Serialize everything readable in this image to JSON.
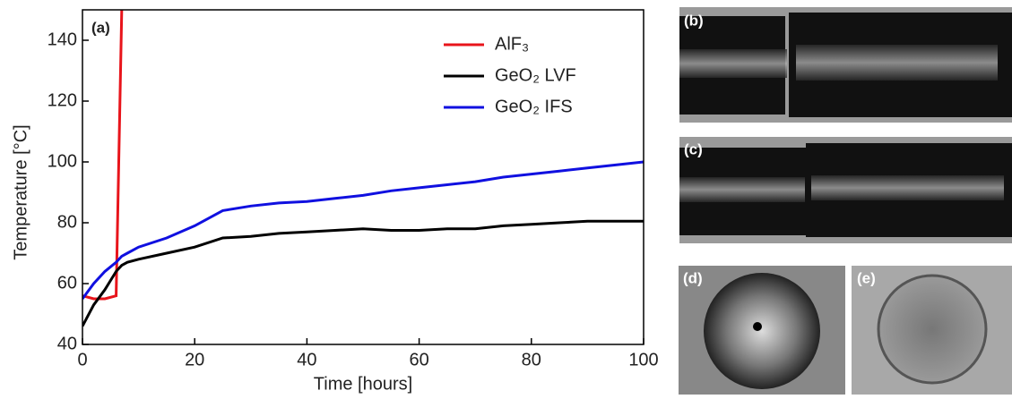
{
  "chart_data": {
    "type": "line",
    "panel_label": "(a)",
    "x_label": "Time [hours]",
    "y_label": "Temperature [°C]",
    "x": [
      0,
      2,
      4,
      6,
      7,
      8,
      10,
      15,
      20,
      25,
      30,
      35,
      40,
      45,
      50,
      55,
      60,
      65,
      70,
      75,
      80,
      85,
      90,
      95,
      100
    ],
    "series": [
      {
        "name": "AlF₃",
        "color": "#e8141b",
        "values": [
          56,
          55,
          55,
          56,
          150,
          null,
          null,
          null,
          null,
          null,
          null,
          null,
          null,
          null,
          null,
          null,
          null,
          null,
          null,
          null,
          null,
          null,
          null,
          null,
          null
        ]
      },
      {
        "name": "GeO₂ LVF",
        "color": "#000000",
        "values": [
          46,
          53,
          58,
          64,
          66,
          67,
          68,
          70,
          72,
          75,
          75.5,
          76.5,
          77,
          77.5,
          78,
          77.5,
          77.5,
          78,
          78,
          79,
          79.5,
          80,
          80.5,
          80.5,
          80.5
        ]
      },
      {
        "name": "GeO₂ IFS",
        "color": "#1010e0",
        "values": [
          55,
          60,
          64,
          67,
          69,
          70,
          72,
          75,
          79,
          84,
          85.5,
          86.5,
          87,
          88,
          89,
          90.5,
          91.5,
          92.5,
          93.5,
          95,
          96,
          97,
          98,
          99,
          100
        ]
      }
    ],
    "xlim": [
      0,
      100
    ],
    "xticks": [
      0,
      20,
      40,
      60,
      80,
      100
    ],
    "ylim": [
      40,
      150
    ],
    "yticks": [
      40,
      60,
      80,
      100,
      120,
      140
    ],
    "grid": false,
    "legend": "upper right"
  },
  "images": [
    {
      "label": "(b)"
    },
    {
      "label": "(c)"
    },
    {
      "label": "(d)"
    },
    {
      "label": "(e)"
    }
  ]
}
